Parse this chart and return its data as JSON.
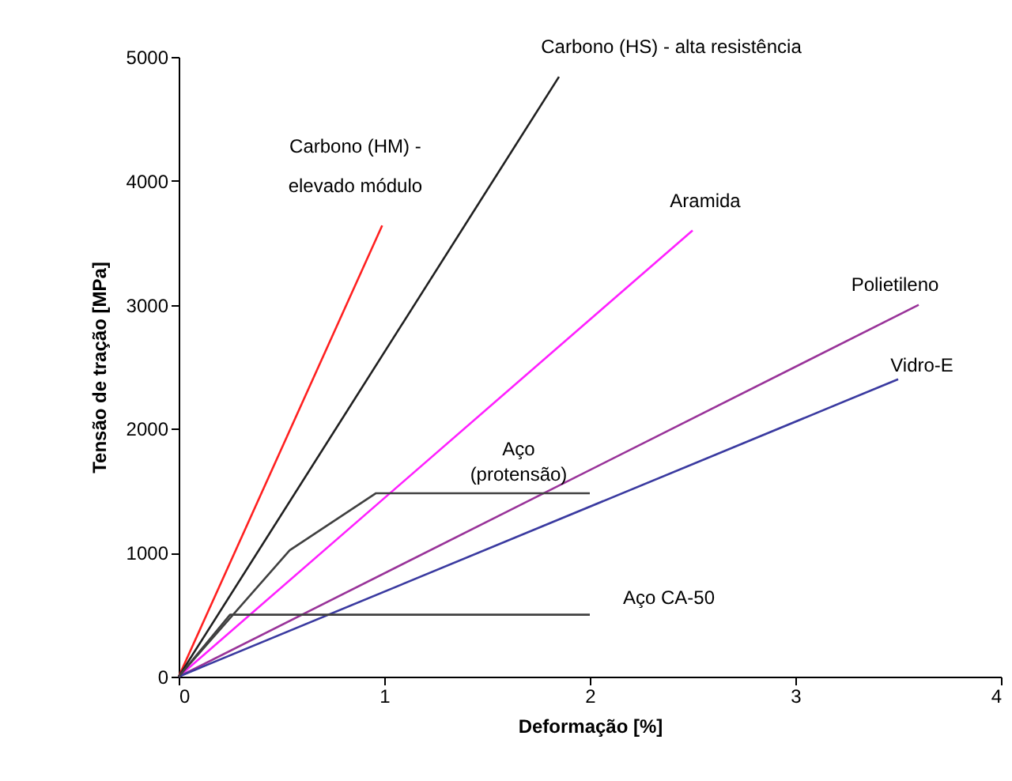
{
  "chart_data": {
    "type": "line",
    "xlabel": "Deformação [%]",
    "ylabel": "Tensão de tração [MPa]",
    "xlim": [
      0,
      4
    ],
    "ylim": [
      0,
      5000
    ],
    "xticks": [
      0,
      1,
      2,
      3,
      4
    ],
    "yticks": [
      0,
      1000,
      2000,
      3000,
      4000,
      5000
    ],
    "series": [
      {
        "name": "Carbono (HM) - elevado módulo",
        "color": "#ff2020",
        "x": [
          0,
          0.99
        ],
        "values": [
          0,
          3640
        ]
      },
      {
        "name": "Carbono (HS) - alta resistência",
        "color": "#202020",
        "x": [
          0,
          1.85
        ],
        "values": [
          0,
          4840
        ]
      },
      {
        "name": "Aramida",
        "color": "#ff20ff",
        "x": [
          0,
          2.5
        ],
        "values": [
          0,
          3600
        ]
      },
      {
        "name": "Polietileno",
        "color": "#993399",
        "x": [
          0,
          3.6
        ],
        "values": [
          0,
          3000
        ]
      },
      {
        "name": "Vidro-E",
        "color": "#3a3aa0",
        "x": [
          0,
          3.5
        ],
        "values": [
          0,
          2400
        ]
      },
      {
        "name": "Aço (protensão)",
        "color": "#404040",
        "x": [
          0,
          0.54,
          0.96,
          2.0
        ],
        "values": [
          0,
          1020,
          1480,
          1480
        ]
      },
      {
        "name": "Aço CA-50",
        "color": "#404040",
        "x": [
          0,
          0.25,
          2.0
        ],
        "values": [
          0,
          500,
          500
        ]
      }
    ]
  }
}
